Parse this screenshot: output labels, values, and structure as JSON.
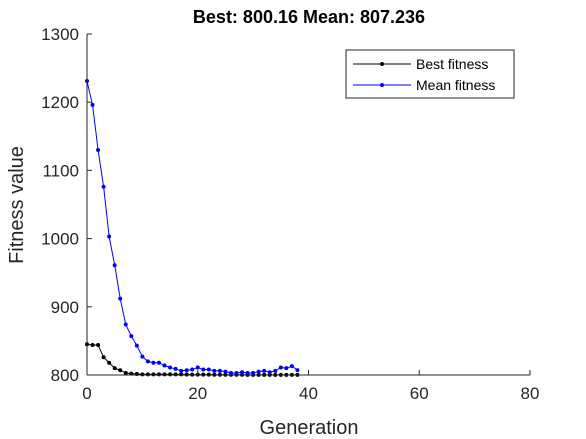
{
  "chart_data": {
    "type": "line",
    "title": "Best: 800.16 Mean: 807.236",
    "xlabel": "Generation",
    "ylabel": "Fitness value",
    "xlim": [
      0,
      80
    ],
    "ylim": [
      800,
      1300
    ],
    "xticks": [
      0,
      20,
      40,
      60,
      80
    ],
    "yticks": [
      800,
      900,
      1000,
      1100,
      1200,
      1300
    ],
    "grid": false,
    "legend_position": "top-right",
    "x": [
      0,
      1,
      2,
      3,
      4,
      5,
      6,
      7,
      8,
      9,
      10,
      11,
      12,
      13,
      14,
      15,
      16,
      17,
      18,
      19,
      20,
      21,
      22,
      23,
      24,
      25,
      26,
      27,
      28,
      29,
      30,
      31,
      32,
      33,
      34,
      35,
      36,
      37,
      38
    ],
    "series": [
      {
        "name": "Best fitness",
        "color": "#000000",
        "values": [
          845,
          844,
          844,
          826,
          818,
          810,
          807,
          803,
          802,
          801.5,
          801,
          801,
          801,
          801,
          801,
          801,
          801,
          801,
          800.8,
          800.6,
          800.5,
          800.5,
          800.5,
          800.4,
          800.4,
          800.3,
          800.3,
          800.3,
          800.3,
          800.2,
          800.2,
          800.2,
          800.2,
          800.2,
          800.2,
          800.2,
          800.16,
          800.16,
          800.16
        ]
      },
      {
        "name": "Mean fitness",
        "color": "#0000ff",
        "values": [
          1231,
          1196,
          1130,
          1076,
          1003,
          961,
          912,
          874,
          857,
          843,
          827,
          820,
          818,
          818,
          814,
          811,
          809,
          806,
          807,
          808,
          811,
          808,
          808,
          806,
          806,
          805,
          803,
          803,
          804,
          803,
          803,
          805,
          806,
          804,
          806,
          811,
          810,
          813,
          807.236
        ]
      }
    ]
  }
}
